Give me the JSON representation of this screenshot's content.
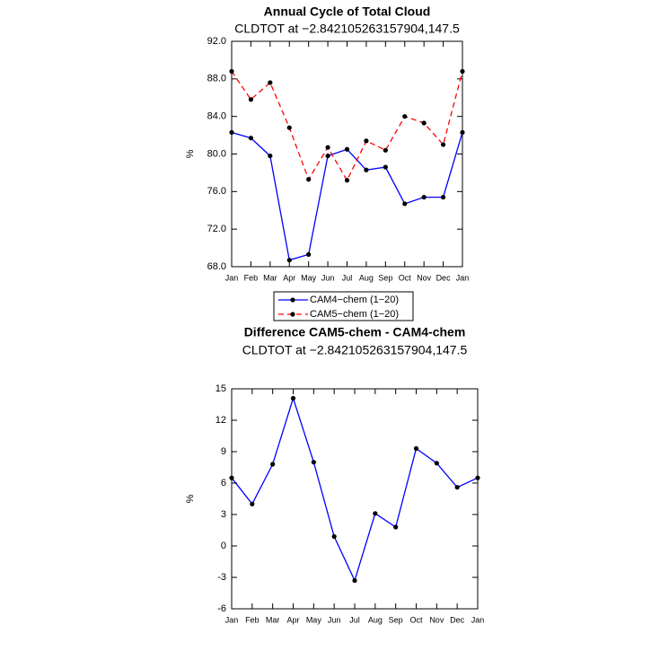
{
  "chart_data": [
    {
      "type": "line",
      "title": "Annual Cycle of Total Cloud",
      "subtitle": "CLDTOT at −2.842105263157904,147.5",
      "ylabel": "%",
      "categories": [
        "Jan",
        "Feb",
        "Mar",
        "Apr",
        "May",
        "Jun",
        "Jul",
        "Aug",
        "Sep",
        "Oct",
        "Nov",
        "Dec",
        "Jan"
      ],
      "series": [
        {
          "name": "CAM4−chem (1−20)",
          "color": "#0000ff",
          "line_style": "solid",
          "values": [
            82.3,
            81.7,
            79.8,
            68.7,
            69.3,
            79.8,
            80.5,
            78.3,
            78.6,
            74.7,
            75.4,
            75.4,
            82.3
          ]
        },
        {
          "name": "CAM5−chem (1−20)",
          "color": "#ff0000",
          "line_style": "dashed",
          "values": [
            88.8,
            85.8,
            87.6,
            82.8,
            77.3,
            80.7,
            77.2,
            81.4,
            80.4,
            84.0,
            83.3,
            81.0,
            88.8
          ]
        }
      ],
      "marker": "circle",
      "ylim": [
        68,
        92
      ],
      "yticks": [
        {
          "value": 68,
          "label": "68.0"
        },
        {
          "value": 72,
          "label": "72.0"
        },
        {
          "value": 76,
          "label": "76.0"
        },
        {
          "value": 80,
          "label": "80.0"
        },
        {
          "value": 84,
          "label": "84.0"
        },
        {
          "value": 88,
          "label": "88.0"
        },
        {
          "value": 92,
          "label": "92.0"
        }
      ]
    },
    {
      "type": "line",
      "title": "Difference CAM5-chem - CAM4-chem",
      "subtitle": "CLDTOT at −2.842105263157904,147.5",
      "ylabel": "%",
      "categories": [
        "Jan",
        "Feb",
        "Mar",
        "Apr",
        "May",
        "Jun",
        "Jul",
        "Aug",
        "Sep",
        "Oct",
        "Nov",
        "Dec",
        "Jan"
      ],
      "values": [
        6.5,
        4.0,
        7.8,
        14.1,
        8.0,
        0.9,
        -3.3,
        3.1,
        1.8,
        9.3,
        7.9,
        5.6,
        6.5
      ],
      "color": "#0000ff",
      "marker": "circle",
      "ylim": [
        -6,
        15
      ],
      "yticks": [
        -6,
        -3,
        0,
        3,
        6,
        9,
        12,
        15
      ]
    }
  ]
}
